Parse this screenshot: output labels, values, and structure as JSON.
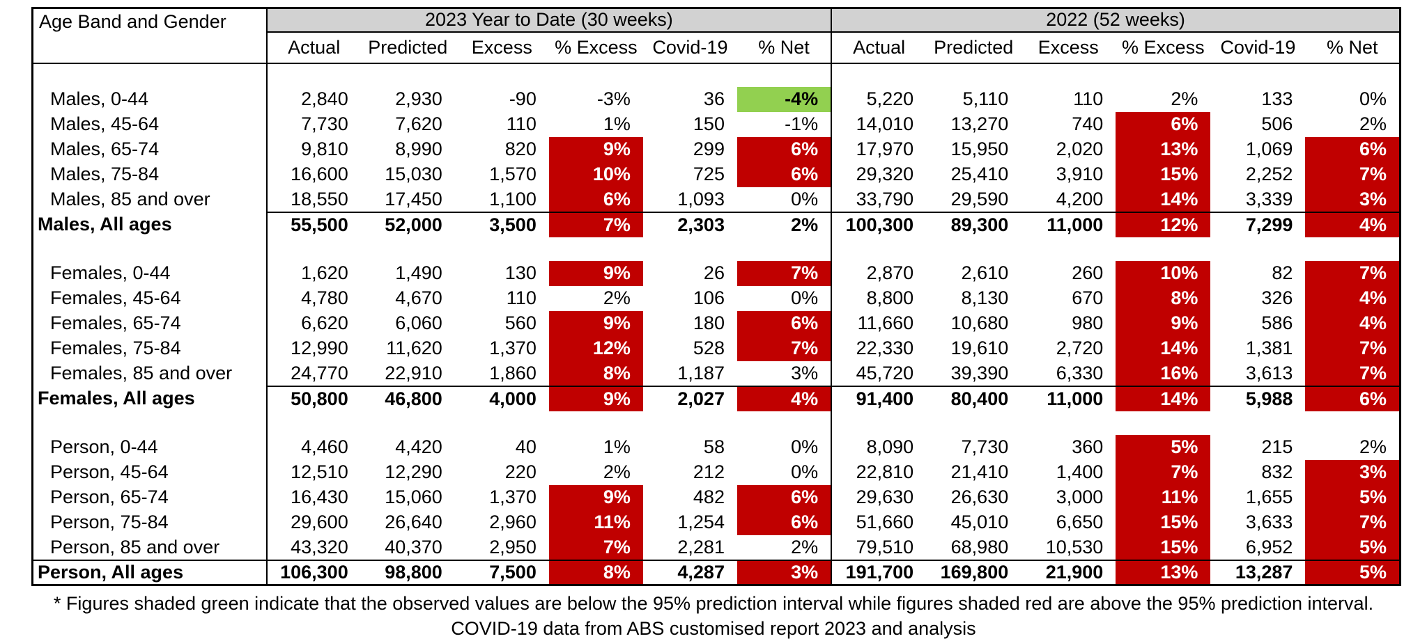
{
  "colors": {
    "highlight_red": "#C00000",
    "highlight_green": "#92D050",
    "header_grey": "#D2D2D2",
    "border": "#000000"
  },
  "table": {
    "corner_label": "Age Band and Gender",
    "groups": [
      {
        "label": "2023 Year to Date (30 weeks)"
      },
      {
        "label": "2022 (52 weeks)"
      }
    ],
    "columns": [
      "Actual",
      "Predicted",
      "Excess",
      "% Excess",
      "Covid-19",
      "% Net"
    ],
    "sections": [
      {
        "name": "males",
        "total_rule_full": false,
        "rows": [
          {
            "label": "Males, 0-44",
            "total": false,
            "cells": [
              [
                "2,840",
                ""
              ],
              [
                "2,930",
                ""
              ],
              [
                "-90",
                ""
              ],
              [
                "-3%",
                ""
              ],
              [
                "36",
                ""
              ],
              [
                "-4%",
                "green"
              ],
              [
                "5,220",
                ""
              ],
              [
                "5,110",
                ""
              ],
              [
                "110",
                ""
              ],
              [
                "2%",
                ""
              ],
              [
                "133",
                ""
              ],
              [
                "0%",
                ""
              ]
            ]
          },
          {
            "label": "Males, 45-64",
            "total": false,
            "cells": [
              [
                "7,730",
                ""
              ],
              [
                "7,620",
                ""
              ],
              [
                "110",
                ""
              ],
              [
                "1%",
                ""
              ],
              [
                "150",
                ""
              ],
              [
                "-1%",
                ""
              ],
              [
                "14,010",
                ""
              ],
              [
                "13,270",
                ""
              ],
              [
                "740",
                ""
              ],
              [
                "6%",
                "red"
              ],
              [
                "506",
                ""
              ],
              [
                "2%",
                ""
              ]
            ]
          },
          {
            "label": "Males, 65-74",
            "total": false,
            "cells": [
              [
                "9,810",
                ""
              ],
              [
                "8,990",
                ""
              ],
              [
                "820",
                ""
              ],
              [
                "9%",
                "red"
              ],
              [
                "299",
                ""
              ],
              [
                "6%",
                "red"
              ],
              [
                "17,970",
                ""
              ],
              [
                "15,950",
                ""
              ],
              [
                "2,020",
                ""
              ],
              [
                "13%",
                "red"
              ],
              [
                "1,069",
                ""
              ],
              [
                "6%",
                "red"
              ]
            ]
          },
          {
            "label": "Males, 75-84",
            "total": false,
            "cells": [
              [
                "16,600",
                ""
              ],
              [
                "15,030",
                ""
              ],
              [
                "1,570",
                ""
              ],
              [
                "10%",
                "red"
              ],
              [
                "725",
                ""
              ],
              [
                "6%",
                "red"
              ],
              [
                "29,320",
                ""
              ],
              [
                "25,410",
                ""
              ],
              [
                "3,910",
                ""
              ],
              [
                "15%",
                "red"
              ],
              [
                "2,252",
                ""
              ],
              [
                "7%",
                "red"
              ]
            ]
          },
          {
            "label": "Males, 85 and over",
            "total": false,
            "cells": [
              [
                "18,550",
                ""
              ],
              [
                "17,450",
                ""
              ],
              [
                "1,100",
                ""
              ],
              [
                "6%",
                "red"
              ],
              [
                "1,093",
                ""
              ],
              [
                "0%",
                ""
              ],
              [
                "33,790",
                ""
              ],
              [
                "29,590",
                ""
              ],
              [
                "4,200",
                ""
              ],
              [
                "14%",
                "red"
              ],
              [
                "3,339",
                ""
              ],
              [
                "3%",
                "red"
              ]
            ]
          },
          {
            "label": "Males, All ages",
            "total": true,
            "cells": [
              [
                "55,500",
                ""
              ],
              [
                "52,000",
                ""
              ],
              [
                "3,500",
                ""
              ],
              [
                "7%",
                "red"
              ],
              [
                "2,303",
                ""
              ],
              [
                "2%",
                ""
              ],
              [
                "100,300",
                ""
              ],
              [
                "89,300",
                ""
              ],
              [
                "11,000",
                ""
              ],
              [
                "12%",
                "red"
              ],
              [
                "7,299",
                ""
              ],
              [
                "4%",
                "red"
              ]
            ]
          }
        ]
      },
      {
        "name": "females",
        "total_rule_full": false,
        "rows": [
          {
            "label": "Females, 0-44",
            "total": false,
            "cells": [
              [
                "1,620",
                ""
              ],
              [
                "1,490",
                ""
              ],
              [
                "130",
                ""
              ],
              [
                "9%",
                "red"
              ],
              [
                "26",
                ""
              ],
              [
                "7%",
                "red"
              ],
              [
                "2,870",
                ""
              ],
              [
                "2,610",
                ""
              ],
              [
                "260",
                ""
              ],
              [
                "10%",
                "red"
              ],
              [
                "82",
                ""
              ],
              [
                "7%",
                "red"
              ]
            ]
          },
          {
            "label": "Females, 45-64",
            "total": false,
            "cells": [
              [
                "4,780",
                ""
              ],
              [
                "4,670",
                ""
              ],
              [
                "110",
                ""
              ],
              [
                "2%",
                ""
              ],
              [
                "106",
                ""
              ],
              [
                "0%",
                ""
              ],
              [
                "8,800",
                ""
              ],
              [
                "8,130",
                ""
              ],
              [
                "670",
                ""
              ],
              [
                "8%",
                "red"
              ],
              [
                "326",
                ""
              ],
              [
                "4%",
                "red"
              ]
            ]
          },
          {
            "label": "Females, 65-74",
            "total": false,
            "cells": [
              [
                "6,620",
                ""
              ],
              [
                "6,060",
                ""
              ],
              [
                "560",
                ""
              ],
              [
                "9%",
                "red"
              ],
              [
                "180",
                ""
              ],
              [
                "6%",
                "red"
              ],
              [
                "11,660",
                ""
              ],
              [
                "10,680",
                ""
              ],
              [
                "980",
                ""
              ],
              [
                "9%",
                "red"
              ],
              [
                "586",
                ""
              ],
              [
                "4%",
                "red"
              ]
            ]
          },
          {
            "label": "Females, 75-84",
            "total": false,
            "cells": [
              [
                "12,990",
                ""
              ],
              [
                "11,620",
                ""
              ],
              [
                "1,370",
                ""
              ],
              [
                "12%",
                "red"
              ],
              [
                "528",
                ""
              ],
              [
                "7%",
                "red"
              ],
              [
                "22,330",
                ""
              ],
              [
                "19,610",
                ""
              ],
              [
                "2,720",
                ""
              ],
              [
                "14%",
                "red"
              ],
              [
                "1,381",
                ""
              ],
              [
                "7%",
                "red"
              ]
            ]
          },
          {
            "label": "Females, 85 and over",
            "total": false,
            "cells": [
              [
                "24,770",
                ""
              ],
              [
                "22,910",
                ""
              ],
              [
                "1,860",
                ""
              ],
              [
                "8%",
                "red"
              ],
              [
                "1,187",
                ""
              ],
              [
                "3%",
                ""
              ],
              [
                "45,720",
                ""
              ],
              [
                "39,390",
                ""
              ],
              [
                "6,330",
                ""
              ],
              [
                "16%",
                "red"
              ],
              [
                "3,613",
                ""
              ],
              [
                "7%",
                "red"
              ]
            ]
          },
          {
            "label": "Females, All ages",
            "total": true,
            "cells": [
              [
                "50,800",
                ""
              ],
              [
                "46,800",
                ""
              ],
              [
                "4,000",
                ""
              ],
              [
                "9%",
                "red"
              ],
              [
                "2,027",
                ""
              ],
              [
                "4%",
                "red"
              ],
              [
                "91,400",
                ""
              ],
              [
                "80,400",
                ""
              ],
              [
                "11,000",
                ""
              ],
              [
                "14%",
                "red"
              ],
              [
                "5,988",
                ""
              ],
              [
                "6%",
                "red"
              ]
            ]
          }
        ]
      },
      {
        "name": "person",
        "total_rule_full": true,
        "rows": [
          {
            "label": "Person, 0-44",
            "total": false,
            "cells": [
              [
                "4,460",
                ""
              ],
              [
                "4,420",
                ""
              ],
              [
                "40",
                ""
              ],
              [
                "1%",
                ""
              ],
              [
                "58",
                ""
              ],
              [
                "0%",
                ""
              ],
              [
                "8,090",
                ""
              ],
              [
                "7,730",
                ""
              ],
              [
                "360",
                ""
              ],
              [
                "5%",
                "red"
              ],
              [
                "215",
                ""
              ],
              [
                "2%",
                ""
              ]
            ]
          },
          {
            "label": "Person, 45-64",
            "total": false,
            "cells": [
              [
                "12,510",
                ""
              ],
              [
                "12,290",
                ""
              ],
              [
                "220",
                ""
              ],
              [
                "2%",
                ""
              ],
              [
                "212",
                ""
              ],
              [
                "0%",
                ""
              ],
              [
                "22,810",
                ""
              ],
              [
                "21,410",
                ""
              ],
              [
                "1,400",
                ""
              ],
              [
                "7%",
                "red"
              ],
              [
                "832",
                ""
              ],
              [
                "3%",
                "red"
              ]
            ]
          },
          {
            "label": "Person, 65-74",
            "total": false,
            "cells": [
              [
                "16,430",
                ""
              ],
              [
                "15,060",
                ""
              ],
              [
                "1,370",
                ""
              ],
              [
                "9%",
                "red"
              ],
              [
                "482",
                ""
              ],
              [
                "6%",
                "red"
              ],
              [
                "29,630",
                ""
              ],
              [
                "26,630",
                ""
              ],
              [
                "3,000",
                ""
              ],
              [
                "11%",
                "red"
              ],
              [
                "1,655",
                ""
              ],
              [
                "5%",
                "red"
              ]
            ]
          },
          {
            "label": "Person, 75-84",
            "total": false,
            "cells": [
              [
                "29,600",
                ""
              ],
              [
                "26,640",
                ""
              ],
              [
                "2,960",
                ""
              ],
              [
                "11%",
                "red"
              ],
              [
                "1,254",
                ""
              ],
              [
                "6%",
                "red"
              ],
              [
                "51,660",
                ""
              ],
              [
                "45,010",
                ""
              ],
              [
                "6,650",
                ""
              ],
              [
                "15%",
                "red"
              ],
              [
                "3,633",
                ""
              ],
              [
                "7%",
                "red"
              ]
            ]
          },
          {
            "label": "Person, 85 and over",
            "total": false,
            "cells": [
              [
                "43,320",
                ""
              ],
              [
                "40,370",
                ""
              ],
              [
                "2,950",
                ""
              ],
              [
                "7%",
                "red"
              ],
              [
                "2,281",
                ""
              ],
              [
                "2%",
                ""
              ],
              [
                "79,510",
                ""
              ],
              [
                "68,980",
                ""
              ],
              [
                "10,530",
                ""
              ],
              [
                "15%",
                "red"
              ],
              [
                "6,952",
                ""
              ],
              [
                "5%",
                "red"
              ]
            ]
          },
          {
            "label": "Person, All ages",
            "total": true,
            "cells": [
              [
                "106,300",
                ""
              ],
              [
                "98,800",
                ""
              ],
              [
                "7,500",
                ""
              ],
              [
                "8%",
                "red"
              ],
              [
                "4,287",
                ""
              ],
              [
                "3%",
                "red"
              ],
              [
                "191,700",
                ""
              ],
              [
                "169,800",
                ""
              ],
              [
                "21,900",
                ""
              ],
              [
                "13%",
                "red"
              ],
              [
                "13,287",
                ""
              ],
              [
                "5%",
                "red"
              ]
            ]
          }
        ]
      }
    ]
  },
  "footnotes": [
    "* Figures shaded green indicate that the observed values are below the 95% prediction interval while figures shaded red are above the 95% prediction interval.",
    "COVID-19 data from ABS customised report 2023 and analysis"
  ]
}
